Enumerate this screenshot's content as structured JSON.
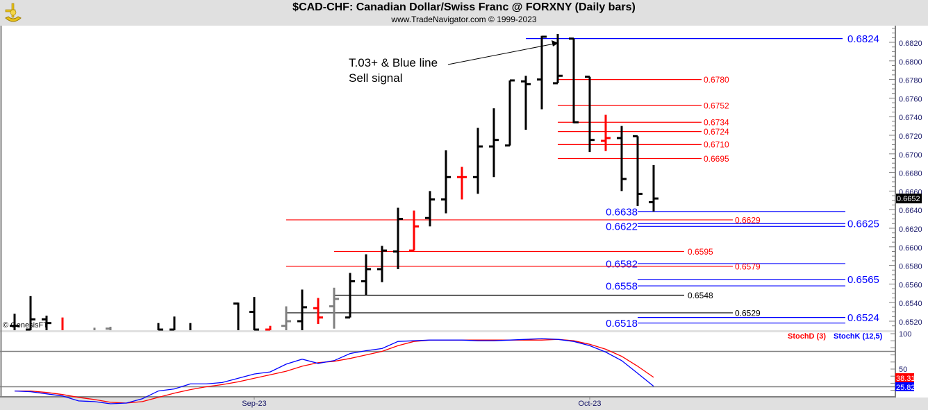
{
  "header": {
    "title": "$CAD-CHF:  Canadian Dollar/Swiss Franc @ FORXNY  (Daily bars)",
    "subtitle": "www.TradeNavigator.com © 1999-2023",
    "logo_icon": "sextant-icon"
  },
  "copyright": "© GenesisFT",
  "annotation": {
    "line1": "T.03+ & Blue line",
    "line2": "Sell signal"
  },
  "chart_data": [
    {
      "type": "ohlc",
      "title": "$CAD-CHF:  Canadian Dollar/Swiss Franc @ FORXNY  (Daily bars)",
      "ylim": [
        0.6511,
        0.6836
      ],
      "y_ticks": [
        "0.6520",
        "0.6540",
        "0.6560",
        "0.6580",
        "0.6600",
        "0.6620",
        "0.6640",
        "0.6660",
        "0.6680",
        "0.6700",
        "0.6720",
        "0.6740",
        "0.6760",
        "0.6780",
        "0.6800",
        "0.6820"
      ],
      "x_labels": [
        {
          "label": "Sep-23",
          "bar": 15
        },
        {
          "label": "Oct-23",
          "bar": 36
        }
      ],
      "last_price": "0.6652",
      "bar_colors": {
        "black": "#000000",
        "red": "#ff0000",
        "gray": "#808080"
      },
      "bars": [
        {
          "o": 0.6515,
          "h": 0.6528,
          "l": 0.65,
          "c": 0.6515,
          "color": "black"
        },
        {
          "o": 0.6511,
          "h": 0.6547,
          "l": 0.65,
          "c": 0.6522,
          "color": "black"
        },
        {
          "o": 0.6522,
          "h": 0.6526,
          "l": 0.65,
          "c": 0.6518,
          "color": "black"
        },
        {
          "o": 0.651,
          "h": 0.6524,
          "l": 0.65,
          "c": 0.6505,
          "color": "red"
        },
        null,
        {
          "o": 0.6505,
          "h": 0.6513,
          "l": 0.65,
          "c": 0.6505,
          "color": "gray"
        },
        {
          "o": 0.6512,
          "h": 0.6514,
          "l": 0.65,
          "c": 0.6508,
          "color": "gray"
        },
        null,
        null,
        {
          "o": 0.6505,
          "h": 0.6518,
          "l": 0.65,
          "c": 0.6511,
          "color": "black"
        },
        {
          "o": 0.6511,
          "h": 0.6525,
          "l": 0.65,
          "c": 0.6505,
          "color": "black"
        },
        {
          "o": 0.6505,
          "h": 0.6518,
          "l": 0.65,
          "c": 0.6502,
          "color": "black"
        },
        null,
        null,
        {
          "o": 0.6539,
          "h": 0.654,
          "l": 0.65,
          "c": 0.6505,
          "color": "black"
        },
        {
          "o": 0.653,
          "h": 0.6546,
          "l": 0.65,
          "c": 0.6511,
          "color": "black"
        },
        {
          "o": 0.6511,
          "h": 0.6515,
          "l": 0.65,
          "c": 0.6507,
          "color": "red"
        },
        {
          "o": 0.6515,
          "h": 0.6536,
          "l": 0.6505,
          "c": 0.652,
          "color": "gray"
        },
        {
          "o": 0.652,
          "h": 0.6554,
          "l": 0.6505,
          "c": 0.6535,
          "color": "black"
        },
        {
          "o": 0.6534,
          "h": 0.6545,
          "l": 0.6517,
          "c": 0.6524,
          "color": "red"
        },
        {
          "o": 0.6536,
          "h": 0.6556,
          "l": 0.6512,
          "c": 0.6544,
          "color": "gray"
        },
        {
          "o": 0.6524,
          "h": 0.6572,
          "l": 0.6524,
          "c": 0.6563,
          "color": "black"
        },
        {
          "o": 0.6563,
          "h": 0.6592,
          "l": 0.6548,
          "c": 0.6576,
          "color": "black"
        },
        {
          "o": 0.6576,
          "h": 0.6601,
          "l": 0.6562,
          "c": 0.6596,
          "color": "black"
        },
        {
          "o": 0.6595,
          "h": 0.6642,
          "l": 0.6576,
          "c": 0.663,
          "color": "black"
        },
        {
          "o": 0.6596,
          "h": 0.6639,
          "l": 0.6596,
          "c": 0.6622,
          "color": "red"
        },
        {
          "o": 0.6631,
          "h": 0.666,
          "l": 0.6622,
          "c": 0.6651,
          "color": "black"
        },
        {
          "o": 0.6651,
          "h": 0.6704,
          "l": 0.6636,
          "c": 0.6675,
          "color": "black"
        },
        {
          "o": 0.6675,
          "h": 0.6686,
          "l": 0.6651,
          "c": 0.6675,
          "color": "red"
        },
        {
          "o": 0.6675,
          "h": 0.6728,
          "l": 0.6657,
          "c": 0.6708,
          "color": "black"
        },
        {
          "o": 0.6708,
          "h": 0.6749,
          "l": 0.6675,
          "c": 0.6715,
          "color": "black"
        },
        {
          "o": 0.6709,
          "h": 0.6779,
          "l": 0.6709,
          "c": 0.6779,
          "color": "black"
        },
        {
          "o": 0.6778,
          "h": 0.6784,
          "l": 0.6726,
          "c": 0.6775,
          "color": "black"
        },
        {
          "o": 0.678,
          "h": 0.6827,
          "l": 0.6748,
          "c": 0.6826,
          "color": "black"
        },
        {
          "o": 0.6776,
          "h": 0.6829,
          "l": 0.6776,
          "c": 0.6784,
          "color": "black"
        },
        {
          "o": 0.6824,
          "h": 0.6824,
          "l": 0.6733,
          "c": 0.6734,
          "color": "black"
        },
        {
          "o": 0.6783,
          "h": 0.6783,
          "l": 0.6702,
          "c": 0.6715,
          "color": "black"
        },
        {
          "o": 0.6714,
          "h": 0.6742,
          "l": 0.6703,
          "c": 0.6717,
          "color": "red"
        },
        {
          "o": 0.6717,
          "h": 0.673,
          "l": 0.666,
          "c": 0.6673,
          "color": "black"
        },
        {
          "o": 0.6719,
          "h": 0.6719,
          "l": 0.6644,
          "c": 0.6657,
          "color": "black"
        },
        {
          "o": 0.6648,
          "h": 0.6688,
          "l": 0.6638,
          "c": 0.6652,
          "color": "black"
        }
      ],
      "levels": [
        {
          "price": 0.6824,
          "label": "0.6824",
          "color": "#0000ff"
        },
        {
          "price": 0.678,
          "label": "0.6780",
          "color": "#ff0000"
        },
        {
          "price": 0.6752,
          "label": "0.6752",
          "color": "#ff0000"
        },
        {
          "price": 0.6734,
          "label": "0.6734",
          "color": "#ff0000"
        },
        {
          "price": 0.6724,
          "label": "0.6724",
          "color": "#ff0000"
        },
        {
          "price": 0.671,
          "label": "0.6710",
          "color": "#ff0000"
        },
        {
          "price": 0.6695,
          "label": "0.6695",
          "color": "#ff0000"
        },
        {
          "price": 0.6638,
          "label": "0.6638",
          "color": "#0000ff"
        },
        {
          "price": 0.6629,
          "label": "0.6629",
          "color": "#ff0000"
        },
        {
          "price": 0.6625,
          "label": "0.6625",
          "color": "#0000ff"
        },
        {
          "price": 0.6622,
          "label": "0.6622",
          "color": "#0000ff"
        },
        {
          "price": 0.6595,
          "label": "0.6595",
          "color": "#ff0000"
        },
        {
          "price": 0.6582,
          "label": "0.6582",
          "color": "#0000ff"
        },
        {
          "price": 0.6579,
          "label": "0.6579",
          "color": "#ff0000"
        },
        {
          "price": 0.6565,
          "label": "0.6565",
          "color": "#0000ff"
        },
        {
          "price": 0.6558,
          "label": "0.6558",
          "color": "#0000ff"
        },
        {
          "price": 0.6548,
          "label": "0.6548",
          "color": "#000000"
        },
        {
          "price": 0.6529,
          "label": "0.6529",
          "color": "#000000"
        },
        {
          "price": 0.6524,
          "label": "0.6524",
          "color": "#0000ff"
        },
        {
          "price": 0.6518,
          "label": "0.6518",
          "color": "#0000ff"
        }
      ]
    },
    {
      "type": "line",
      "ylim": [
        0,
        100
      ],
      "y_ticks": [
        "100",
        "50"
      ],
      "reference_lines": [
        75,
        25
      ],
      "series": [
        {
          "name": "StochD (3)",
          "color": "#ff0000",
          "last": "38.31",
          "values": [
            19,
            19,
            17,
            14,
            10,
            7,
            3,
            2,
            4,
            10,
            16,
            21,
            25,
            28,
            32,
            37,
            42,
            47,
            54,
            59,
            61,
            65,
            70,
            75,
            83,
            89,
            91,
            91,
            91,
            91,
            91,
            91,
            91,
            91,
            92,
            90,
            85,
            78,
            68,
            54,
            38.31
          ]
        },
        {
          "name": "StochK (12,5)",
          "color": "#0000ff",
          "last": "25.82",
          "values": [
            19,
            18,
            15,
            12,
            5,
            4,
            1,
            2,
            8,
            19,
            22,
            29,
            29,
            31,
            37,
            43,
            46,
            57,
            64,
            58,
            62,
            72,
            76,
            79,
            89,
            90,
            91,
            91,
            91,
            90,
            90,
            91,
            92,
            93,
            92,
            89,
            83,
            74,
            62,
            44,
            25.82
          ]
        }
      ]
    }
  ]
}
